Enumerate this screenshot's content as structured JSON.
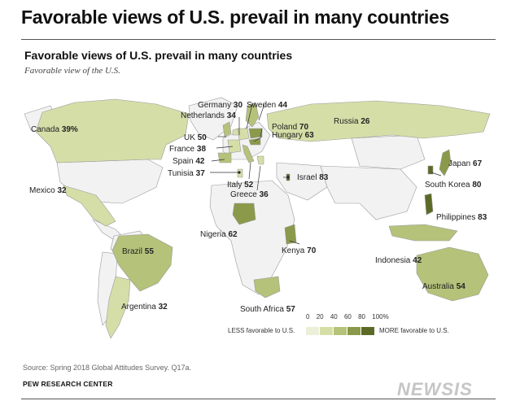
{
  "headline": "Favorable views of U.S. prevail in many countries",
  "chart_title": "Favorable views of U.S. prevail in many countries",
  "chart_subtitle": "Favorable view of the U.S.",
  "colors": {
    "unsurveyed": "#f2f2f2",
    "border": "#9a9a9a",
    "bin_0_20": "#edf0d8",
    "bin_20_40": "#d6dea8",
    "bin_40_60": "#b5c27a",
    "bin_60_80": "#8a9a4a",
    "bin_80_100": "#5c6a28"
  },
  "legend": {
    "ticks": [
      "0",
      "20",
      "40",
      "60",
      "80",
      "100%"
    ],
    "less_label": "LESS favorable to U.S.",
    "more_label": "MORE favorable to U.S."
  },
  "chart_data": {
    "type": "choropleth",
    "title": "Favorable views of U.S. prevail in many countries",
    "subtitle": "Favorable view of the U.S.",
    "unit": "%",
    "countries": [
      {
        "name": "Canada",
        "value": 39,
        "display": "39%"
      },
      {
        "name": "Mexico",
        "value": 32,
        "display": "32"
      },
      {
        "name": "Brazil",
        "value": 55,
        "display": "55"
      },
      {
        "name": "Argentina",
        "value": 32,
        "display": "32"
      },
      {
        "name": "Germany",
        "value": 30,
        "display": "30"
      },
      {
        "name": "Sweden",
        "value": 44,
        "display": "44"
      },
      {
        "name": "Netherlands",
        "value": 34,
        "display": "34"
      },
      {
        "name": "Poland",
        "value": 70,
        "display": "70"
      },
      {
        "name": "Hungary",
        "value": 63,
        "display": "63"
      },
      {
        "name": "UK",
        "value": 50,
        "display": "50"
      },
      {
        "name": "France",
        "value": 38,
        "display": "38"
      },
      {
        "name": "Spain",
        "value": 42,
        "display": "42"
      },
      {
        "name": "Tunisia",
        "value": 37,
        "display": "37"
      },
      {
        "name": "Italy",
        "value": 52,
        "display": "52"
      },
      {
        "name": "Greece",
        "value": 36,
        "display": "36"
      },
      {
        "name": "Israel",
        "value": 83,
        "display": "83"
      },
      {
        "name": "Russia",
        "value": 26,
        "display": "26"
      },
      {
        "name": "Japan",
        "value": 67,
        "display": "67"
      },
      {
        "name": "South Korea",
        "value": 80,
        "display": "80"
      },
      {
        "name": "Philippines",
        "value": 83,
        "display": "83"
      },
      {
        "name": "Indonesia",
        "value": 42,
        "display": "42"
      },
      {
        "name": "Australia",
        "value": 54,
        "display": "54"
      },
      {
        "name": "Nigeria",
        "value": 62,
        "display": "62"
      },
      {
        "name": "Kenya",
        "value": 70,
        "display": "70"
      },
      {
        "name": "South Africa",
        "value": 57,
        "display": "57"
      }
    ]
  },
  "source": "Source: Spring 2018 Global Attitudes Survey. Q17a.",
  "org": "PEW RESEARCH CENTER",
  "watermark": "NEWSIS"
}
